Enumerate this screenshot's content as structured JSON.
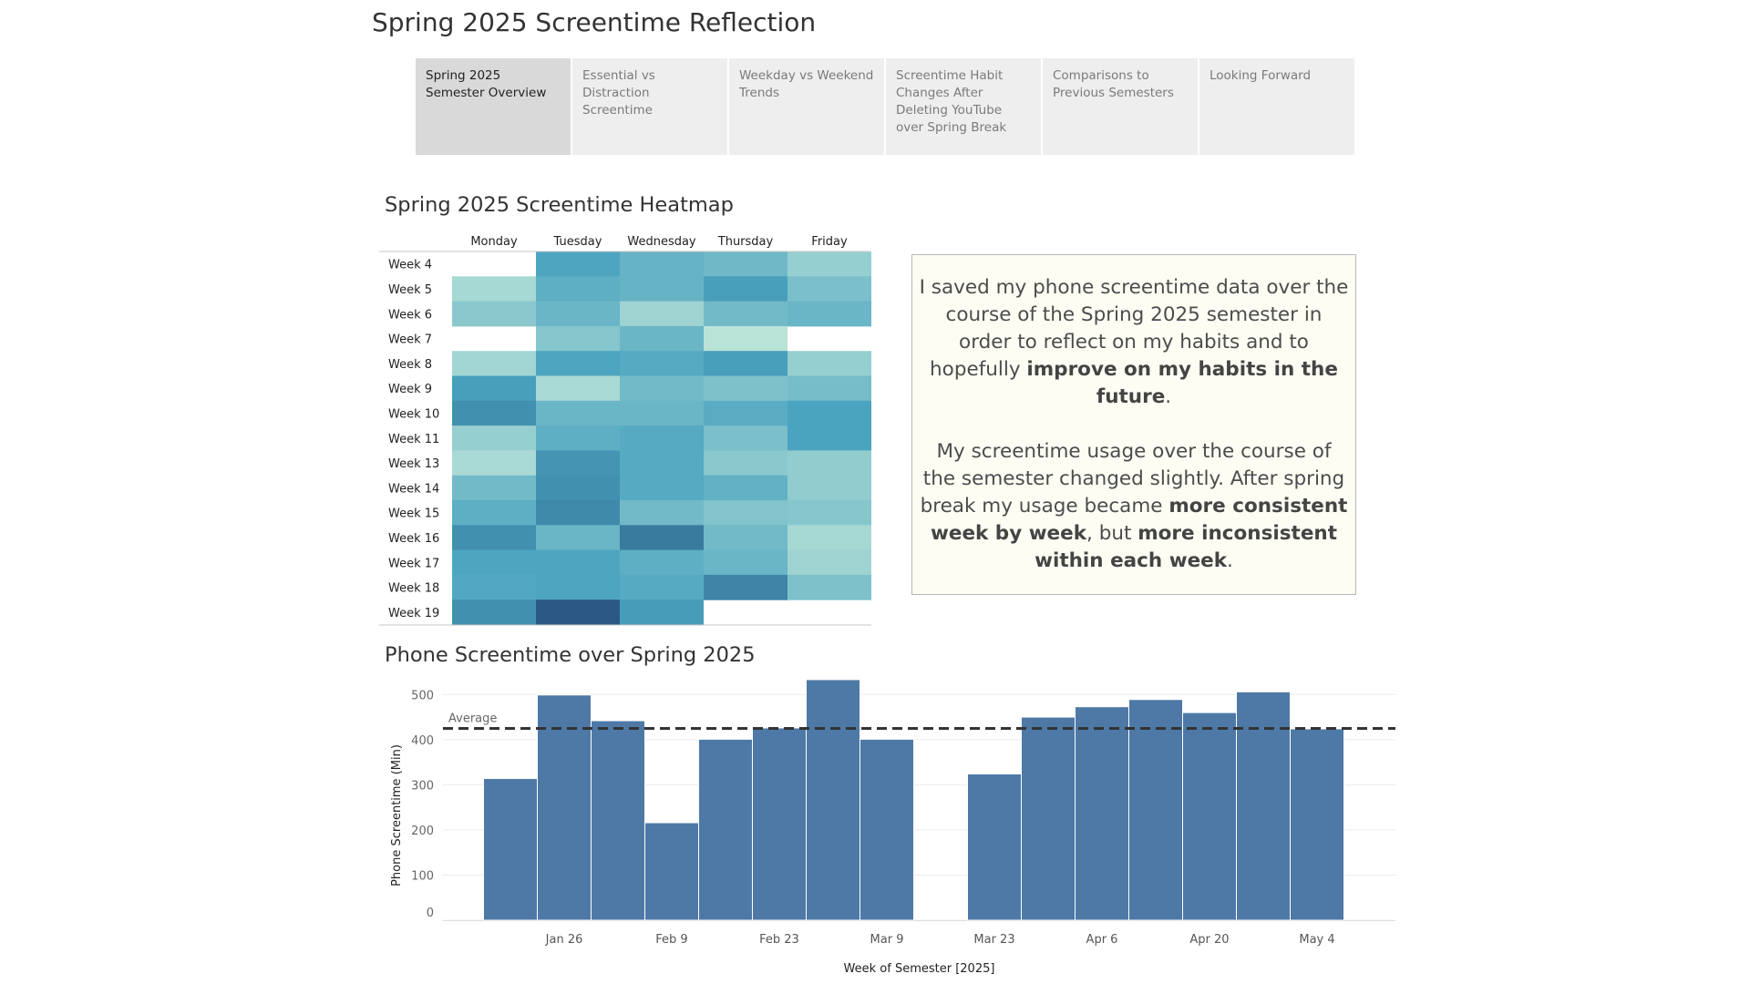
{
  "page_title": "Spring 2025 Screentime Reflection",
  "tabs": [
    {
      "label": "Spring 2025 Semester Overview",
      "active": true
    },
    {
      "label": "Essential vs Distraction Screentime",
      "active": false
    },
    {
      "label": "Weekday vs Weekend Trends",
      "active": false
    },
    {
      "label": "Screentime Habit Changes After Deleting YouTube over Spring Break",
      "active": false
    },
    {
      "label": "Comparisons to Previous Semesters",
      "active": false
    },
    {
      "label": "Looking Forward",
      "active": false
    }
  ],
  "heatmap_title": "Spring 2025 Screentime Heatmap",
  "bar_title": "Phone Screentime over Spring 2025",
  "reflection": {
    "p1": [
      {
        "text": "I saved my phone screentime data over the course of the Spring 2025 semester in order to reflect on my habits and to hopefully ",
        "bold": false
      },
      {
        "text": "improve on my habits in the future",
        "bold": true
      },
      {
        "text": ".",
        "bold": false
      }
    ],
    "p2": [
      {
        "text": "My screentime usage over the course of the semester changed slightly. After spring break my usage became ",
        "bold": false
      },
      {
        "text": "more consistent week by week",
        "bold": true
      },
      {
        "text": ", but ",
        "bold": false
      },
      {
        "text": "more inconsistent within each week",
        "bold": true
      },
      {
        "text": ".",
        "bold": false
      }
    ]
  },
  "colors": {
    "bar": "#4e79a7",
    "heat_low": "#c2e8da",
    "heat_mid": "#4aa3bf",
    "heat_high": "#2b5884",
    "avg_line": "#333333"
  },
  "chart_data": [
    {
      "type": "heatmap",
      "title": "Spring 2025 Screentime Heatmap",
      "columns": [
        "Monday",
        "Tuesday",
        "Wednesday",
        "Thursday",
        "Friday"
      ],
      "rows": [
        "Week 4",
        "Week 5",
        "Week 6",
        "Week 7",
        "Week 8",
        "Week 9",
        "Week 10",
        "Week 11",
        "Week 13",
        "Week 14",
        "Week 15",
        "Week 16",
        "Week 17",
        "Week 18",
        "Week 19"
      ],
      "value_scale": [
        0,
        1
      ],
      "values": [
        [
          null,
          0.58,
          0.46,
          0.42,
          0.22
        ],
        [
          0.14,
          0.5,
          0.46,
          0.62,
          0.36
        ],
        [
          0.28,
          0.44,
          0.18,
          0.4,
          0.44
        ],
        [
          null,
          0.3,
          0.44,
          0.04,
          null
        ],
        [
          0.16,
          0.58,
          0.54,
          0.62,
          0.22
        ],
        [
          0.62,
          0.12,
          0.4,
          0.34,
          0.38
        ],
        [
          0.7,
          0.44,
          0.44,
          0.52,
          0.6
        ],
        [
          0.22,
          0.5,
          0.54,
          0.36,
          0.6
        ],
        [
          0.12,
          0.68,
          0.54,
          0.28,
          0.24
        ],
        [
          0.4,
          0.7,
          0.54,
          0.48,
          0.24
        ],
        [
          0.5,
          0.74,
          0.4,
          0.32,
          0.3
        ],
        [
          0.7,
          0.44,
          0.82,
          0.4,
          0.14
        ],
        [
          0.58,
          0.58,
          0.5,
          0.44,
          0.18
        ],
        [
          0.56,
          0.58,
          0.54,
          0.76,
          0.34
        ],
        [
          0.7,
          1.0,
          0.64,
          null,
          null
        ]
      ]
    },
    {
      "type": "bar",
      "title": "Phone Screentime over Spring 2025",
      "xlabel": "Week of Semester [2025]",
      "ylabel": "Phone Screentime (Min)",
      "ylim": [
        0,
        545
      ],
      "yticks": [
        0,
        100,
        200,
        300,
        400,
        500
      ],
      "week_starts": [
        "2025-01-19",
        "2025-01-26",
        "2025-02-02",
        "2025-02-09",
        "2025-02-16",
        "2025-02-23",
        "2025-03-02",
        "2025-03-09",
        "2025-03-16",
        "2025-03-23",
        "2025-03-30",
        "2025-04-06",
        "2025-04-13",
        "2025-04-20",
        "2025-04-27",
        "2025-05-04"
      ],
      "values": [
        314,
        499,
        442,
        216,
        401,
        426,
        533,
        401,
        null,
        324,
        450,
        473,
        489,
        460,
        506,
        424
      ],
      "x_tick_labels": [
        {
          "label": "Jan 26",
          "date": "2025-01-26"
        },
        {
          "label": "Feb 9",
          "date": "2025-02-09"
        },
        {
          "label": "Feb 23",
          "date": "2025-02-23"
        },
        {
          "label": "Mar 9",
          "date": "2025-03-09"
        },
        {
          "label": "Mar 23",
          "date": "2025-03-23"
        },
        {
          "label": "Apr 6",
          "date": "2025-04-06"
        },
        {
          "label": "Apr 20",
          "date": "2025-04-20"
        },
        {
          "label": "May 4",
          "date": "2025-05-04"
        }
      ],
      "reference_line": {
        "label": "Average",
        "value": 425,
        "style": "dashed"
      },
      "grid": true
    }
  ]
}
